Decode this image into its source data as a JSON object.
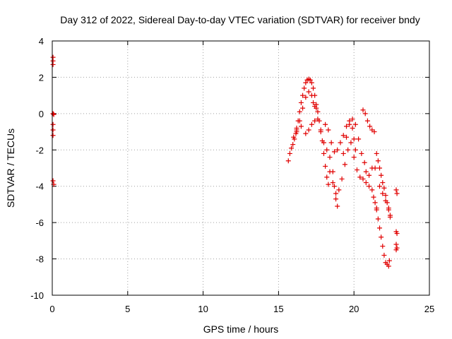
{
  "chart_data": {
    "type": "scatter",
    "title": "Day 312 of 2022, Sidereal Day-to-day VTEC variation (SDTVAR) for receiver bndy",
    "xlabel": "GPS time / hours",
    "ylabel": "SDTVAR / TECUs",
    "xlim": [
      0,
      25
    ],
    "ylim": [
      -10,
      4
    ],
    "xticks": [
      "0",
      "5",
      "10",
      "15",
      "20",
      "25"
    ],
    "yticks": [
      "4",
      "2",
      "0",
      "-2",
      "-4",
      "-6",
      "-8",
      "-10"
    ],
    "grid": true,
    "marker": "plus",
    "color": "#ff0000",
    "series": [
      {
        "values": [
          [
            0.05,
            3.1
          ],
          [
            0.05,
            2.9
          ],
          [
            0.05,
            2.7
          ],
          [
            0.05,
            0.0
          ],
          [
            0.1,
            -0.05
          ],
          [
            0.05,
            -0.6
          ],
          [
            0.05,
            -0.9
          ],
          [
            0.05,
            -1.2
          ],
          [
            0.05,
            -3.7
          ],
          [
            0.1,
            -3.9
          ],
          [
            15.65,
            -2.6
          ],
          [
            15.75,
            -2.2
          ],
          [
            15.85,
            -1.9
          ],
          [
            15.95,
            -1.7
          ],
          [
            16.05,
            -1.4
          ],
          [
            16.15,
            -1.1
          ],
          [
            16.2,
            -0.9
          ],
          [
            16.3,
            -0.4
          ],
          [
            16.4,
            0.1
          ],
          [
            16.5,
            0.6
          ],
          [
            16.6,
            1.0
          ],
          [
            16.7,
            1.4
          ],
          [
            16.8,
            1.7
          ],
          [
            16.9,
            1.85
          ],
          [
            17.0,
            1.9
          ],
          [
            17.1,
            1.85
          ],
          [
            17.2,
            1.7
          ],
          [
            17.3,
            1.4
          ],
          [
            17.4,
            1.0
          ],
          [
            17.5,
            0.5
          ],
          [
            17.6,
            0.1
          ],
          [
            17.7,
            -0.4
          ],
          [
            17.8,
            -0.9
          ],
          [
            17.9,
            -1.5
          ],
          [
            18.0,
            -2.2
          ],
          [
            18.1,
            -2.9
          ],
          [
            18.2,
            -3.5
          ],
          [
            18.3,
            -3.9
          ],
          [
            16.2,
            -0.8
          ],
          [
            16.4,
            -0.4
          ],
          [
            16.6,
            0.3
          ],
          [
            16.8,
            0.9
          ],
          [
            17.0,
            1.2
          ],
          [
            17.2,
            1.0
          ],
          [
            17.4,
            0.4
          ],
          [
            17.6,
            -0.3
          ],
          [
            17.8,
            -1.0
          ],
          [
            18.0,
            -1.6
          ],
          [
            18.2,
            -2.0
          ],
          [
            18.4,
            -2.4
          ],
          [
            18.6,
            -3.2
          ],
          [
            18.7,
            -4.0
          ],
          [
            18.8,
            -4.7
          ],
          [
            18.9,
            -5.1
          ],
          [
            16.0,
            -1.3
          ],
          [
            16.2,
            -1.0
          ],
          [
            16.5,
            -0.7
          ],
          [
            16.8,
            -1.1
          ],
          [
            17.0,
            -0.9
          ],
          [
            17.2,
            -0.6
          ],
          [
            17.4,
            -0.4
          ],
          [
            17.5,
            0.3
          ],
          [
            17.3,
            0.6
          ],
          [
            18.1,
            -0.6
          ],
          [
            18.3,
            -0.9
          ],
          [
            18.5,
            -1.6
          ],
          [
            18.7,
            -2.1
          ],
          [
            18.9,
            -2.0
          ],
          [
            19.1,
            -1.6
          ],
          [
            19.3,
            -1.2
          ],
          [
            19.5,
            -0.7
          ],
          [
            19.7,
            -0.4
          ],
          [
            19.9,
            -0.8
          ],
          [
            20.0,
            -1.4
          ],
          [
            20.1,
            -2.0
          ],
          [
            18.4,
            -3.2
          ],
          [
            18.6,
            -3.8
          ],
          [
            18.8,
            -4.4
          ],
          [
            19.0,
            -4.2
          ],
          [
            19.2,
            -3.6
          ],
          [
            19.4,
            -2.8
          ],
          [
            19.6,
            -2.0
          ],
          [
            19.8,
            -1.6
          ],
          [
            20.0,
            -2.4
          ],
          [
            20.2,
            -3.1
          ],
          [
            20.4,
            -3.5
          ],
          [
            20.6,
            -3.6
          ],
          [
            20.8,
            -3.8
          ],
          [
            21.0,
            -4.0
          ],
          [
            21.2,
            -4.2
          ],
          [
            21.3,
            -4.6
          ],
          [
            21.4,
            -4.9
          ],
          [
            21.5,
            -5.2
          ],
          [
            19.3,
            -2.2
          ],
          [
            19.5,
            -1.3
          ],
          [
            19.7,
            -0.6
          ],
          [
            19.9,
            -0.3
          ],
          [
            20.1,
            -0.6
          ],
          [
            20.3,
            -1.4
          ],
          [
            20.5,
            -2.2
          ],
          [
            20.7,
            -2.7
          ],
          [
            20.8,
            -3.2
          ],
          [
            21.0,
            -3.4
          ],
          [
            21.2,
            -3.0
          ],
          [
            21.4,
            -3.0
          ],
          [
            20.6,
            0.2
          ],
          [
            20.75,
            0.0
          ],
          [
            20.9,
            -0.4
          ],
          [
            21.05,
            -0.7
          ],
          [
            21.2,
            -0.9
          ],
          [
            21.35,
            -1.0
          ],
          [
            21.5,
            -2.2
          ],
          [
            21.6,
            -2.6
          ],
          [
            21.7,
            -3.0
          ],
          [
            21.8,
            -3.4
          ],
          [
            21.9,
            -3.8
          ],
          [
            22.0,
            -4.1
          ],
          [
            22.1,
            -4.5
          ],
          [
            22.2,
            -4.9
          ],
          [
            22.3,
            -5.2
          ],
          [
            22.4,
            -5.6
          ],
          [
            21.7,
            -4.0
          ],
          [
            21.9,
            -4.4
          ],
          [
            22.1,
            -4.8
          ],
          [
            22.3,
            -5.3
          ],
          [
            22.4,
            -5.7
          ],
          [
            21.5,
            -5.3
          ],
          [
            21.6,
            -5.8
          ],
          [
            21.7,
            -6.3
          ],
          [
            21.8,
            -6.8
          ],
          [
            21.9,
            -7.3
          ],
          [
            22.0,
            -7.8
          ],
          [
            22.1,
            -8.2
          ],
          [
            22.2,
            -8.3
          ],
          [
            22.3,
            -8.4
          ],
          [
            22.35,
            -8.1
          ],
          [
            22.8,
            -4.2
          ],
          [
            22.85,
            -4.4
          ],
          [
            22.8,
            -6.5
          ],
          [
            22.85,
            -6.6
          ],
          [
            22.8,
            -7.2
          ],
          [
            22.85,
            -7.4
          ],
          [
            22.8,
            -7.5
          ]
        ]
      }
    ]
  }
}
